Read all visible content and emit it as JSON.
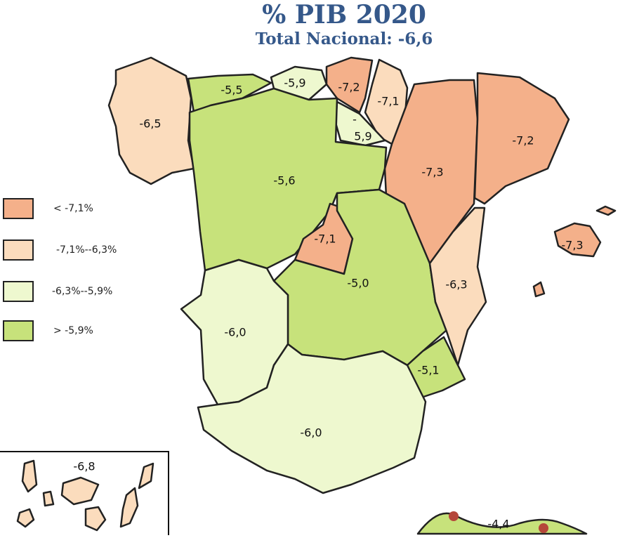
{
  "title": "% PIB 2020",
  "subtitle": "Total Nacional: -6,6",
  "colors": {
    "lt_-7.1": "#f4b08a",
    "-7.1_-6.3": "#fbdcbd",
    "-6.3_-5.9": "#eef8cf",
    "gt_-5.9": "#c7e27b"
  },
  "legend": [
    {
      "label": "< -7,1%",
      "color": "#f4b08a"
    },
    {
      "label": "-7,1%--6,3%",
      "color": "#fbdcbd"
    },
    {
      "label": "-6,3%--5,9%",
      "color": "#eef8cf"
    },
    {
      "label": "> -5,9%",
      "color": "#c7e27b"
    }
  ],
  "regions": {
    "galicia": "-6,5",
    "asturias": "-5,5",
    "cantabria": "-5,9",
    "pais_vasco": "-7,2",
    "navarra": "-7,1",
    "la_rioja_top": "-",
    "la_rioja": "5,9",
    "aragon": "-7,3",
    "cataluna": "-7,2",
    "castilla_leon": "-5,6",
    "madrid": "-7,1",
    "castilla_la_mancha": "-5,0",
    "valencia": "-6,3",
    "baleares": "-7,3",
    "murcia": "-5,1",
    "extremadura": "-6,0",
    "andalucia": "-6,0",
    "canarias": "-6,8",
    "ceuta_melilla": "-4,4"
  }
}
